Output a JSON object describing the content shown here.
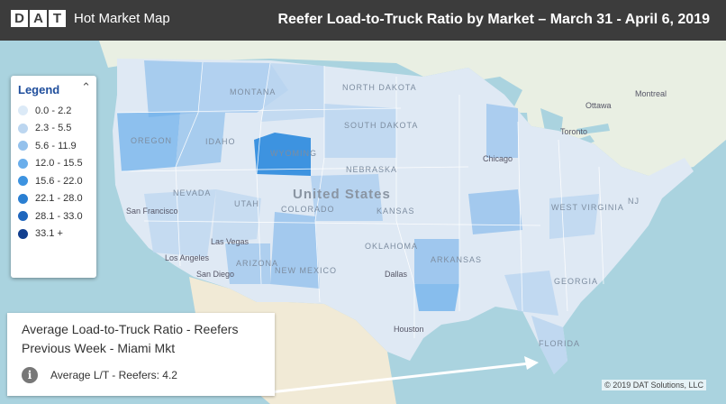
{
  "header": {
    "brand_letters": [
      "D",
      "A",
      "T"
    ],
    "app_title": "Hot Market Map",
    "report_title": "Reefer Load-to-Truck Ratio by Market – March 31 - April 6, 2019"
  },
  "legend": {
    "title": "Legend",
    "toggle_icon": "chevron-up-icon",
    "items": [
      {
        "range": "0.0 - 2.2",
        "color": "#dceaf7"
      },
      {
        "range": "2.3 - 5.5",
        "color": "#bcd6f0"
      },
      {
        "range": "5.6 - 11.9",
        "color": "#94c1ec"
      },
      {
        "range": "12.0 - 15.5",
        "color": "#6aaeeb"
      },
      {
        "range": "15.6 - 22.0",
        "color": "#3d93e0"
      },
      {
        "range": "22.1 - 28.0",
        "color": "#2a7fd2"
      },
      {
        "range": "28.1 - 33.0",
        "color": "#1f66bd"
      },
      {
        "range": "33.1 +",
        "color": "#123f8e"
      }
    ]
  },
  "info_box": {
    "line1": "Average Load-to-Truck Ratio - Reefers",
    "line2": "Previous Week - Miami Mkt",
    "icon": "info-icon",
    "value_text": "Average L/T - Reefers: 4.2"
  },
  "map": {
    "country_label": "United States",
    "states": [
      "MONTANA",
      "NORTH DAKOTA",
      "SOUTH DAKOTA",
      "OREGON",
      "IDAHO",
      "WYOMING",
      "NEBRASKA",
      "NEVADA",
      "UTAH",
      "COLORADO",
      "KANSAS",
      "ARIZONA",
      "NEW MEXICO",
      "OKLAHOMA",
      "ARKANSAS",
      "GEORGIA",
      "FLORIDA",
      "WEST VIRGINIA",
      "NJ"
    ],
    "cities": [
      "Ottawa",
      "Montreal",
      "Toronto",
      "Chicago",
      "San Francisco",
      "Las Vegas",
      "Los Angeles",
      "San Diego",
      "Dallas",
      "Houston"
    ]
  },
  "copyright": "© 2019 DAT Solutions, LLC"
}
